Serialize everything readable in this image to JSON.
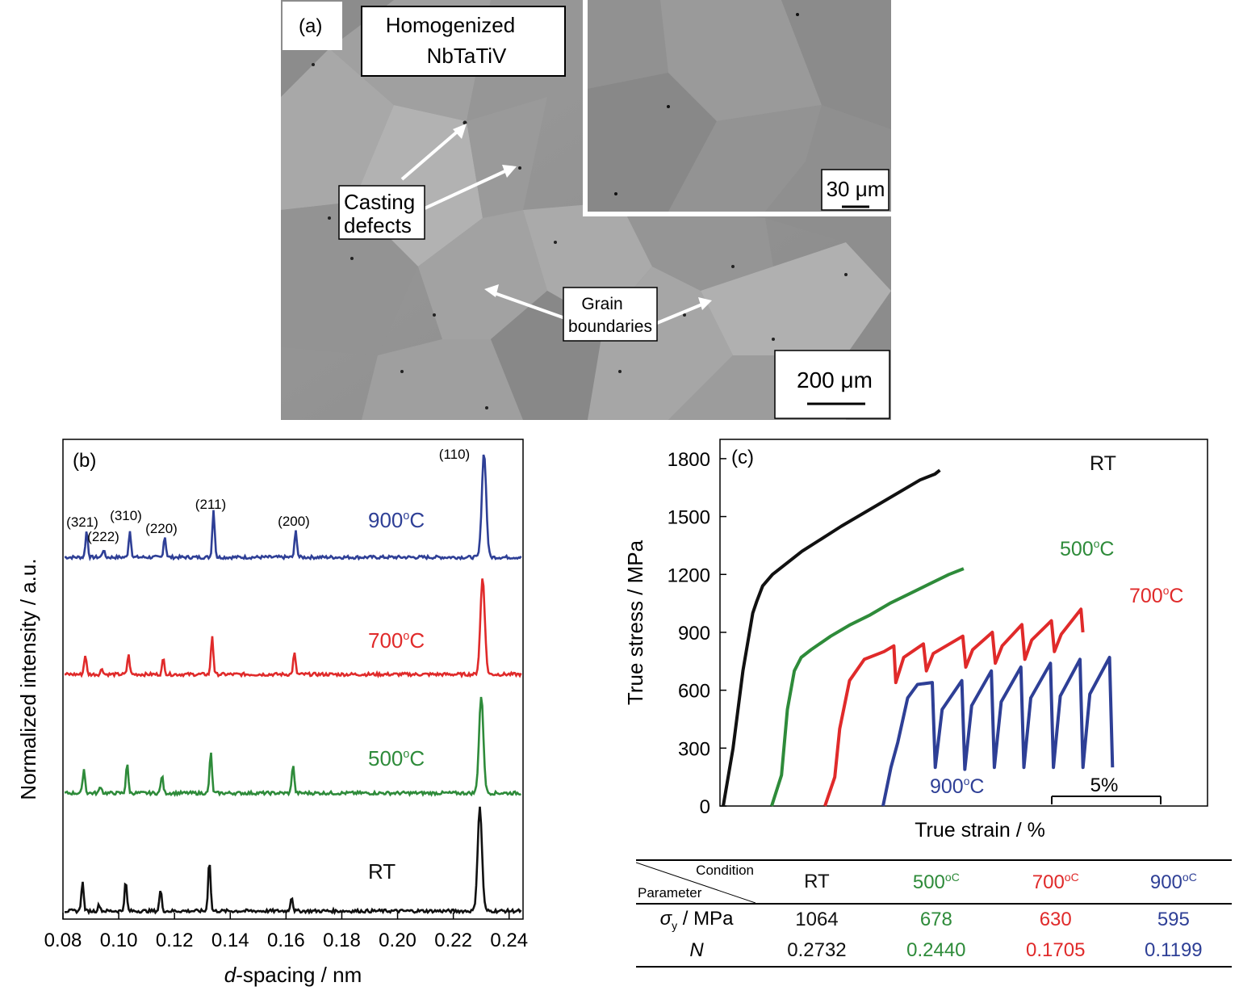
{
  "panel_a": {
    "label": "(a)",
    "title_line1": "Homogenized",
    "title_line2": "NbTaTiV",
    "defects_line1": "Casting",
    "defects_line2": "defects",
    "gb_line1": "Grain",
    "gb_line2": "boundaries",
    "scale_main": "200 μm",
    "scale_inset": "30 μm"
  },
  "colors": {
    "rt": "#111111",
    "t500": "#2e8b3a",
    "t700": "#e02a2a",
    "t900": "#2e3f96"
  },
  "chart_data": [
    {
      "type": "line",
      "panel_label": "(b)",
      "xlabel_italic": "d",
      "xlabel_rest": "-spacing / nm",
      "ylabel": "Normalized intensity / a.u.",
      "xlim": [
        0.08,
        0.245
      ],
      "x_ticks": [
        "0.08",
        "0.10",
        "0.12",
        "0.14",
        "0.16",
        "0.18",
        "0.20",
        "0.22",
        "0.24"
      ],
      "peak_positions": [
        0.087,
        0.093,
        0.1025,
        0.115,
        0.1325,
        0.162,
        0.2295
      ],
      "series": [
        {
          "name": "900°C",
          "temp": "900",
          "unit": "oC",
          "color": "#2e3f96",
          "heights": [
            0.25,
            0.07,
            0.25,
            0.2,
            0.45,
            0.25,
            1.0
          ],
          "shift": 0.0015
        },
        {
          "name": "700°C",
          "temp": "700",
          "unit": "oC",
          "color": "#e02a2a",
          "heights": [
            0.2,
            0.06,
            0.2,
            0.16,
            0.4,
            0.22,
            1.0
          ],
          "shift": 0.001
        },
        {
          "name": "500°C",
          "temp": "500",
          "unit": "oC",
          "color": "#2e8b3a",
          "heights": [
            0.25,
            0.07,
            0.3,
            0.18,
            0.42,
            0.3,
            1.0
          ],
          "shift": 0.0005
        },
        {
          "name": "RT",
          "temp": "RT",
          "unit": "",
          "color": "#111111",
          "heights": [
            0.28,
            0.06,
            0.28,
            0.2,
            0.5,
            0.14,
            1.0
          ],
          "shift": 0.0
        }
      ],
      "peak_labels": [
        "(321)",
        "(222)",
        "(310)",
        "(220)",
        "(211)",
        "(200)",
        "(110)"
      ]
    },
    {
      "type": "line",
      "panel_label": "(c)",
      "xlabel": "True strain / %",
      "ylabel": "True stress / MPa",
      "ylim": [
        0,
        1900
      ],
      "y_ticks": [
        "0",
        "300",
        "600",
        "900",
        "1200",
        "1500",
        "1800"
      ],
      "scale_bar": "5%",
      "series": [
        {
          "name": "RT",
          "temp": "RT",
          "unit": "",
          "color": "#111111",
          "points": [
            [
              0,
              0
            ],
            [
              1,
              300
            ],
            [
              2,
              700
            ],
            [
              3,
              1000
            ],
            [
              3.4,
              1060
            ],
            [
              4,
              1140
            ],
            [
              5,
              1200
            ],
            [
              8,
              1320
            ],
            [
              12,
              1450
            ],
            [
              16,
              1570
            ],
            [
              20,
              1690
            ],
            [
              21.5,
              1720
            ],
            [
              22,
              1740
            ]
          ]
        },
        {
          "name": "500°C",
          "temp": "500",
          "unit": "oC",
          "color": "#2e8b3a",
          "points": [
            [
              0,
              0
            ],
            [
              1,
              160
            ],
            [
              1.6,
              500
            ],
            [
              2.3,
              700
            ],
            [
              3,
              770
            ],
            [
              4,
              810
            ],
            [
              6,
              880
            ],
            [
              8,
              940
            ],
            [
              10,
              990
            ],
            [
              12,
              1050
            ],
            [
              14,
              1100
            ],
            [
              16,
              1150
            ],
            [
              18,
              1200
            ],
            [
              19.5,
              1230
            ]
          ]
        },
        {
          "name": "700°C",
          "temp": "700",
          "unit": "oC",
          "color": "#e02a2a",
          "points": [
            [
              0,
              0
            ],
            [
              1,
              150
            ],
            [
              1.5,
              400
            ],
            [
              2.5,
              650
            ],
            [
              4,
              760
            ],
            [
              6,
              800
            ],
            [
              7,
              830
            ],
            [
              7.2,
              640
            ],
            [
              8,
              770
            ],
            [
              10,
              840
            ],
            [
              10.3,
              700
            ],
            [
              11,
              790
            ],
            [
              14,
              880
            ],
            [
              14.3,
              720
            ],
            [
              15,
              810
            ],
            [
              17,
              900
            ],
            [
              17.3,
              740
            ],
            [
              18,
              830
            ],
            [
              20,
              940
            ],
            [
              20.3,
              760
            ],
            [
              21,
              860
            ],
            [
              23,
              960
            ],
            [
              23.3,
              800
            ],
            [
              24,
              890
            ],
            [
              26,
              1020
            ],
            [
              26.2,
              900
            ]
          ]
        },
        {
          "name": "900°C",
          "temp": "900",
          "unit": "oC",
          "color": "#2e3f96",
          "points": [
            [
              0,
              0
            ],
            [
              0.8,
              200
            ],
            [
              1.5,
              330
            ],
            [
              2.5,
              560
            ],
            [
              3.5,
              630
            ],
            [
              5,
              640
            ],
            [
              5.3,
              200
            ],
            [
              6,
              500
            ],
            [
              8,
              650
            ],
            [
              8.3,
              190
            ],
            [
              9,
              520
            ],
            [
              11,
              700
            ],
            [
              11.3,
              200
            ],
            [
              12,
              540
            ],
            [
              14,
              720
            ],
            [
              14.3,
              200
            ],
            [
              15,
              560
            ],
            [
              17,
              740
            ],
            [
              17.3,
              200
            ],
            [
              18,
              570
            ],
            [
              20,
              760
            ],
            [
              20.3,
              200
            ],
            [
              21,
              580
            ],
            [
              23,
              770
            ],
            [
              23.3,
              200
            ]
          ]
        }
      ]
    }
  ],
  "table": {
    "condition_label": "Condition",
    "parameter_label": "Parameter",
    "columns": [
      {
        "temp": "RT",
        "unit": ""
      },
      {
        "temp": "500",
        "unit": "oC"
      },
      {
        "temp": "700",
        "unit": "oC"
      },
      {
        "temp": "900",
        "unit": "oC"
      }
    ],
    "row1_symbol": "σ",
    "row1_sub": "y",
    "row1_unit": " / MPa",
    "row1_values": [
      "1064",
      "678",
      "630",
      "595"
    ],
    "row2_label": "N",
    "row2_values": [
      "0.2732",
      "0.2440",
      "0.1705",
      "0.1199"
    ]
  }
}
